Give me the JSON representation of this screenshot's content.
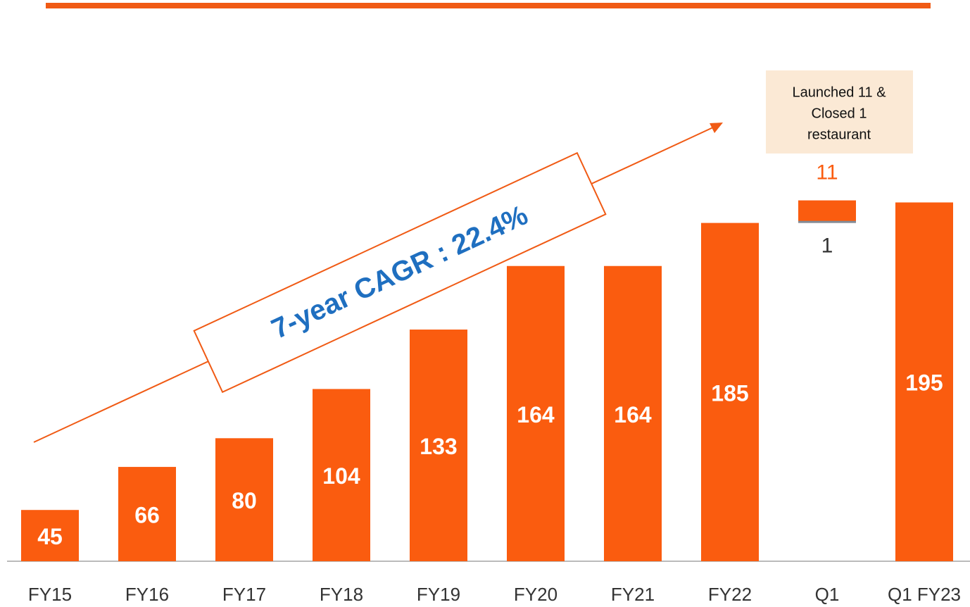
{
  "chart_data": {
    "type": "bar",
    "categories": [
      "FY15",
      "FY16",
      "FY17",
      "FY18",
      "FY19",
      "FY20",
      "FY21",
      "FY22",
      "Q1",
      "Q1 FY23"
    ],
    "values": [
      45,
      66,
      80,
      104,
      133,
      164,
      164,
      185,
      null,
      195
    ],
    "color": "#fa5c0f",
    "increase": 11,
    "decrease": 1,
    "decrease_color": "#7f8c9a",
    "ylim": [
      20,
      280
    ],
    "annotation": "7-year CAGR : 22.4%",
    "note_lines": [
      "Launched 11 &",
      "Closed 1",
      "restaurant"
    ]
  }
}
